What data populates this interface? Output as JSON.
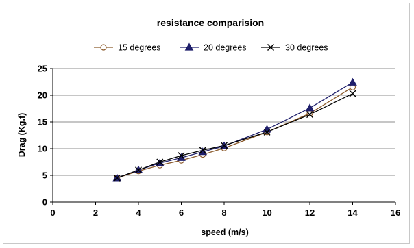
{
  "chart_data": {
    "type": "line",
    "title": "resistance comparision",
    "xlabel": "speed (m/s)",
    "ylabel": "Drag (Kg.f)",
    "xlim": [
      0,
      16
    ],
    "ylim": [
      0,
      25
    ],
    "xticks": [
      0,
      2,
      4,
      6,
      8,
      10,
      12,
      14,
      16
    ],
    "yticks": [
      0,
      5,
      10,
      15,
      20,
      25
    ],
    "grid": true,
    "legend_position": "top",
    "series": [
      {
        "name": "15 degrees",
        "marker": "circle",
        "color": "#8B5A2B",
        "x": [
          3,
          4,
          5,
          6,
          7,
          8,
          10,
          12,
          14
        ],
        "y": [
          4.5,
          5.8,
          6.9,
          7.8,
          8.9,
          10.1,
          13.1,
          16.6,
          21.5
        ]
      },
      {
        "name": "20 degrees",
        "marker": "triangle",
        "color": "#1F1F6B",
        "x": [
          3,
          4,
          5,
          6,
          7,
          8,
          10,
          12,
          14
        ],
        "y": [
          4.5,
          6.0,
          7.3,
          8.3,
          9.4,
          10.5,
          13.6,
          17.6,
          22.4
        ]
      },
      {
        "name": "30 degrees",
        "marker": "x",
        "color": "#000000",
        "x": [
          3,
          4,
          5,
          6,
          7,
          8,
          10,
          12,
          14
        ],
        "y": [
          4.5,
          6.0,
          7.5,
          8.7,
          9.7,
          10.6,
          13.1,
          16.4,
          20.3
        ]
      }
    ]
  }
}
